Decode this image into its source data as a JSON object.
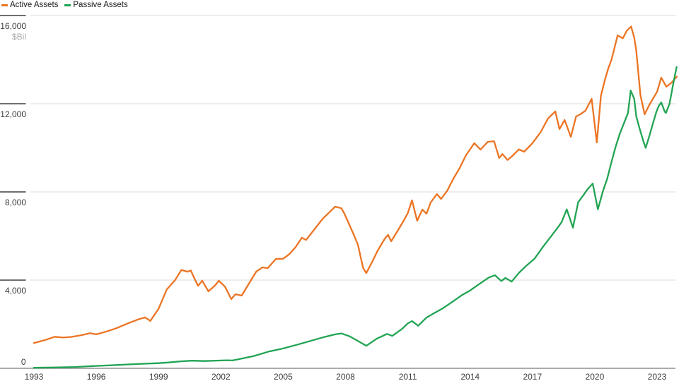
{
  "legend": {
    "items": [
      {
        "label": "Active Assets",
        "color": "#ec7423"
      },
      {
        "label": "Passive Assets",
        "color": "#21a453"
      }
    ]
  },
  "axes": {
    "y": {
      "unit_label": "$Bil",
      "ticks": [
        {
          "value": 0,
          "label": "0"
        },
        {
          "value": 4000,
          "label": "4,000"
        },
        {
          "value": 8000,
          "label": "8,000"
        },
        {
          "value": 12000,
          "label": "12,000"
        },
        {
          "value": 16000,
          "label": "16,000"
        }
      ]
    },
    "x": {
      "ticks": [
        1993,
        1996,
        1999,
        2002,
        2005,
        2008,
        2011,
        2014,
        2017,
        2020,
        2023
      ]
    }
  },
  "colors": {
    "grid": "#d8d8d8",
    "tick": "#5a5a5a",
    "axis": "#8f8f8f",
    "y_label": "#3c3c3c",
    "x_label": "#3c3c3c",
    "unit_label": "#a8a8a8"
  },
  "chart_data": {
    "type": "line",
    "title": "",
    "ylabel": "$Bil",
    "ylim": [
      0,
      16000
    ],
    "x_range": [
      1993,
      2024
    ],
    "grid": "horizontal",
    "legend_position": "top-left",
    "series": [
      {
        "name": "Active Assets",
        "color": "#ec7423",
        "points": [
          [
            1993.0,
            1150
          ],
          [
            1993.5,
            1270
          ],
          [
            1994.0,
            1430
          ],
          [
            1994.4,
            1395
          ],
          [
            1994.8,
            1425
          ],
          [
            1995.3,
            1505
          ],
          [
            1995.7,
            1590
          ],
          [
            1996.0,
            1540
          ],
          [
            1996.5,
            1670
          ],
          [
            1997.0,
            1830
          ],
          [
            1997.5,
            2030
          ],
          [
            1998.0,
            2210
          ],
          [
            1998.35,
            2310
          ],
          [
            1998.6,
            2150
          ],
          [
            1999.0,
            2700
          ],
          [
            1999.4,
            3580
          ],
          [
            1999.8,
            4010
          ],
          [
            2000.1,
            4460
          ],
          [
            2000.4,
            4380
          ],
          [
            2000.55,
            4440
          ],
          [
            2000.7,
            4130
          ],
          [
            2000.9,
            3740
          ],
          [
            2001.1,
            3970
          ],
          [
            2001.4,
            3490
          ],
          [
            2001.7,
            3740
          ],
          [
            2001.9,
            3970
          ],
          [
            2002.2,
            3700
          ],
          [
            2002.5,
            3140
          ],
          [
            2002.7,
            3360
          ],
          [
            2003.0,
            3300
          ],
          [
            2003.35,
            3840
          ],
          [
            2003.7,
            4380
          ],
          [
            2004.0,
            4580
          ],
          [
            2004.25,
            4540
          ],
          [
            2004.65,
            4960
          ],
          [
            2005.0,
            4970
          ],
          [
            2005.3,
            5180
          ],
          [
            2005.6,
            5500
          ],
          [
            2005.9,
            5920
          ],
          [
            2006.1,
            5820
          ],
          [
            2006.45,
            6240
          ],
          [
            2006.9,
            6780
          ],
          [
            2007.25,
            7100
          ],
          [
            2007.5,
            7330
          ],
          [
            2007.8,
            7260
          ],
          [
            2007.95,
            7010
          ],
          [
            2008.1,
            6690
          ],
          [
            2008.4,
            6050
          ],
          [
            2008.6,
            5600
          ],
          [
            2008.75,
            4960
          ],
          [
            2008.85,
            4540
          ],
          [
            2009.0,
            4320
          ],
          [
            2009.3,
            4860
          ],
          [
            2009.55,
            5340
          ],
          [
            2009.9,
            5890
          ],
          [
            2010.05,
            6050
          ],
          [
            2010.2,
            5760
          ],
          [
            2010.55,
            6300
          ],
          [
            2010.8,
            6690
          ],
          [
            2011.0,
            7040
          ],
          [
            2011.2,
            7620
          ],
          [
            2011.45,
            6690
          ],
          [
            2011.7,
            7200
          ],
          [
            2011.9,
            7010
          ],
          [
            2012.1,
            7520
          ],
          [
            2012.4,
            7900
          ],
          [
            2012.6,
            7680
          ],
          [
            2012.9,
            8060
          ],
          [
            2013.2,
            8610
          ],
          [
            2013.5,
            9090
          ],
          [
            2013.8,
            9660
          ],
          [
            2014.2,
            10210
          ],
          [
            2014.5,
            9920
          ],
          [
            2014.85,
            10270
          ],
          [
            2015.15,
            10300
          ],
          [
            2015.4,
            9540
          ],
          [
            2015.55,
            9720
          ],
          [
            2015.8,
            9450
          ],
          [
            2016.0,
            9600
          ],
          [
            2016.35,
            9930
          ],
          [
            2016.6,
            9820
          ],
          [
            2017.0,
            10210
          ],
          [
            2017.4,
            10720
          ],
          [
            2017.75,
            11330
          ],
          [
            2018.1,
            11650
          ],
          [
            2018.3,
            10850
          ],
          [
            2018.55,
            11260
          ],
          [
            2018.85,
            10500
          ],
          [
            2019.1,
            11420
          ],
          [
            2019.3,
            11520
          ],
          [
            2019.55,
            11680
          ],
          [
            2019.85,
            12220
          ],
          [
            2020.1,
            10240
          ],
          [
            2020.3,
            12380
          ],
          [
            2020.5,
            13120
          ],
          [
            2020.65,
            13600
          ],
          [
            2020.8,
            13980
          ],
          [
            2020.95,
            14530
          ],
          [
            2021.1,
            15100
          ],
          [
            2021.35,
            14970
          ],
          [
            2021.55,
            15320
          ],
          [
            2021.75,
            15500
          ],
          [
            2021.9,
            15000
          ],
          [
            2022.0,
            14400
          ],
          [
            2022.2,
            12380
          ],
          [
            2022.4,
            11520
          ],
          [
            2022.6,
            11900
          ],
          [
            2022.8,
            12220
          ],
          [
            2023.0,
            12540
          ],
          [
            2023.2,
            13180
          ],
          [
            2023.45,
            12770
          ],
          [
            2023.7,
            12960
          ],
          [
            2023.95,
            13230
          ]
        ]
      },
      {
        "name": "Passive Assets",
        "color": "#21a453",
        "points": [
          [
            1993.0,
            25
          ],
          [
            1994.0,
            40
          ],
          [
            1995.0,
            60
          ],
          [
            1996.0,
            110
          ],
          [
            1997.0,
            150
          ],
          [
            1998.0,
            195
          ],
          [
            1999.0,
            235
          ],
          [
            1999.5,
            265
          ],
          [
            2000.0,
            310
          ],
          [
            2000.6,
            345
          ],
          [
            2001.2,
            330
          ],
          [
            2001.8,
            350
          ],
          [
            2002.3,
            365
          ],
          [
            2002.55,
            355
          ],
          [
            2002.9,
            420
          ],
          [
            2003.6,
            560
          ],
          [
            2004.3,
            760
          ],
          [
            2005.0,
            900
          ],
          [
            2005.7,
            1080
          ],
          [
            2006.3,
            1240
          ],
          [
            2006.9,
            1400
          ],
          [
            2007.5,
            1540
          ],
          [
            2007.8,
            1580
          ],
          [
            2008.2,
            1450
          ],
          [
            2008.6,
            1240
          ],
          [
            2009.0,
            1020
          ],
          [
            2009.5,
            1340
          ],
          [
            2010.0,
            1560
          ],
          [
            2010.25,
            1470
          ],
          [
            2010.7,
            1770
          ],
          [
            2011.0,
            2040
          ],
          [
            2011.2,
            2140
          ],
          [
            2011.5,
            1930
          ],
          [
            2011.9,
            2300
          ],
          [
            2012.3,
            2520
          ],
          [
            2012.7,
            2730
          ],
          [
            2013.2,
            3050
          ],
          [
            2013.6,
            3320
          ],
          [
            2014.0,
            3530
          ],
          [
            2014.4,
            3800
          ],
          [
            2014.9,
            4120
          ],
          [
            2015.2,
            4220
          ],
          [
            2015.5,
            3960
          ],
          [
            2015.7,
            4100
          ],
          [
            2016.0,
            3930
          ],
          [
            2016.35,
            4330
          ],
          [
            2016.7,
            4650
          ],
          [
            2017.1,
            4970
          ],
          [
            2017.5,
            5500
          ],
          [
            2017.85,
            5930
          ],
          [
            2018.2,
            6360
          ],
          [
            2018.4,
            6620
          ],
          [
            2018.65,
            7210
          ],
          [
            2018.95,
            6380
          ],
          [
            2019.2,
            7530
          ],
          [
            2019.45,
            7850
          ],
          [
            2019.65,
            8120
          ],
          [
            2019.9,
            8380
          ],
          [
            2020.15,
            7210
          ],
          [
            2020.4,
            8060
          ],
          [
            2020.6,
            8600
          ],
          [
            2020.8,
            9340
          ],
          [
            2021.0,
            10040
          ],
          [
            2021.2,
            10620
          ],
          [
            2021.4,
            11100
          ],
          [
            2021.6,
            11580
          ],
          [
            2021.73,
            12600
          ],
          [
            2021.9,
            12220
          ],
          [
            2022.0,
            11420
          ],
          [
            2022.17,
            10840
          ],
          [
            2022.34,
            10300
          ],
          [
            2022.45,
            10000
          ],
          [
            2022.62,
            10520
          ],
          [
            2022.8,
            11100
          ],
          [
            2022.97,
            11640
          ],
          [
            2023.08,
            11900
          ],
          [
            2023.2,
            12060
          ],
          [
            2023.37,
            11640
          ],
          [
            2023.43,
            11580
          ],
          [
            2023.6,
            12000
          ],
          [
            2023.77,
            12860
          ],
          [
            2023.94,
            13660
          ]
        ]
      }
    ]
  }
}
